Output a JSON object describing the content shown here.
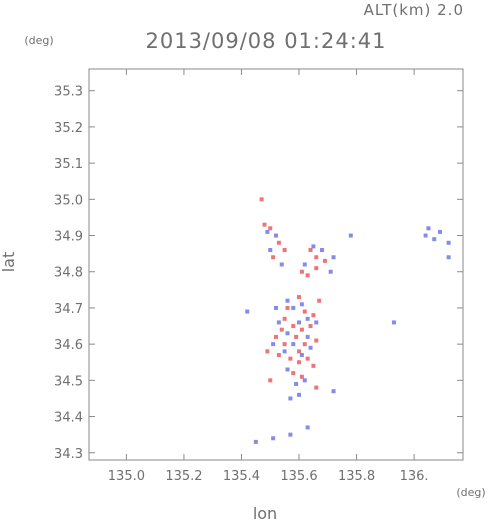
{
  "header": {
    "datetime": "2013/09/08 01:24:41",
    "altitude_label": "ALT(km) 2.0"
  },
  "axes": {
    "y_unit": "(deg)",
    "x_unit": "(deg)",
    "xlabel": "lon",
    "ylabel": "lat"
  },
  "colors": {
    "frame": "#8a8a8a",
    "text": "#6f6f6f",
    "positive": "#e8454b",
    "negative": "#5a66e0",
    "background": "#ffffff"
  },
  "chart_data": {
    "type": "scatter",
    "title": "2013/09/08 01:24:41",
    "xlabel": "lon",
    "ylabel": "lat",
    "xlim": [
      134.87,
      136.17
    ],
    "ylim": [
      34.28,
      35.36
    ],
    "xticks": [
      135.0,
      135.2,
      135.4,
      135.6,
      135.8,
      136.0
    ],
    "xtick_labels": [
      "135.0",
      "135.2",
      "135.4",
      "135.6",
      "135.8",
      "136."
    ],
    "yticks": [
      34.3,
      34.4,
      34.5,
      34.6,
      34.7,
      34.8,
      34.9,
      35.0,
      35.1,
      35.2,
      35.3
    ],
    "ytick_labels": [
      "34.3",
      "34.4",
      "34.5",
      "34.6",
      "34.7",
      "34.8",
      "34.9",
      "35.0",
      "35.1",
      "35.2",
      "35.3"
    ],
    "grid": false,
    "series": [
      {
        "color": "#e8454b",
        "points": [
          [
            135.48,
            34.93
          ],
          [
            135.5,
            34.92
          ],
          [
            135.53,
            34.88
          ],
          [
            135.55,
            34.86
          ],
          [
            135.51,
            34.84
          ],
          [
            135.64,
            34.86
          ],
          [
            135.66,
            34.84
          ],
          [
            135.61,
            34.8
          ],
          [
            135.63,
            34.79
          ],
          [
            135.66,
            34.81
          ],
          [
            135.69,
            34.83
          ],
          [
            135.6,
            34.73
          ],
          [
            135.62,
            34.69
          ],
          [
            135.65,
            34.68
          ],
          [
            135.55,
            34.67
          ],
          [
            135.58,
            34.65
          ],
          [
            135.61,
            34.64
          ],
          [
            135.64,
            34.65
          ],
          [
            135.52,
            34.62
          ],
          [
            135.55,
            34.6
          ],
          [
            135.59,
            34.62
          ],
          [
            135.62,
            34.6
          ],
          [
            135.66,
            34.61
          ],
          [
            135.49,
            34.58
          ],
          [
            135.53,
            34.57
          ],
          [
            135.57,
            34.56
          ],
          [
            135.6,
            34.55
          ],
          [
            135.63,
            34.56
          ],
          [
            135.58,
            34.52
          ],
          [
            135.61,
            34.51
          ],
          [
            135.66,
            34.48
          ],
          [
            135.5,
            34.5
          ],
          [
            135.47,
            35.0
          ],
          [
            135.56,
            34.7
          ],
          [
            135.67,
            34.72
          ],
          [
            135.54,
            34.64
          ],
          [
            135.6,
            34.58
          ],
          [
            135.65,
            34.54
          ]
        ]
      },
      {
        "color": "#5a66e0",
        "points": [
          [
            135.49,
            34.91
          ],
          [
            135.52,
            34.9
          ],
          [
            135.5,
            34.86
          ],
          [
            135.54,
            34.82
          ],
          [
            135.62,
            34.82
          ],
          [
            135.65,
            34.87
          ],
          [
            135.68,
            34.86
          ],
          [
            135.72,
            34.84
          ],
          [
            135.78,
            34.9
          ],
          [
            135.71,
            34.8
          ],
          [
            135.56,
            34.72
          ],
          [
            135.58,
            34.7
          ],
          [
            135.61,
            34.71
          ],
          [
            135.63,
            34.67
          ],
          [
            135.66,
            34.66
          ],
          [
            135.53,
            34.66
          ],
          [
            135.56,
            34.63
          ],
          [
            135.6,
            34.66
          ],
          [
            135.63,
            34.62
          ],
          [
            135.51,
            34.6
          ],
          [
            135.55,
            34.58
          ],
          [
            135.58,
            34.6
          ],
          [
            135.61,
            34.57
          ],
          [
            135.64,
            34.59
          ],
          [
            135.56,
            34.53
          ],
          [
            135.59,
            34.49
          ],
          [
            135.62,
            34.5
          ],
          [
            135.57,
            34.45
          ],
          [
            135.6,
            34.46
          ],
          [
            135.72,
            34.47
          ],
          [
            135.42,
            34.69
          ],
          [
            135.52,
            34.7
          ],
          [
            135.93,
            34.66
          ],
          [
            136.05,
            34.92
          ],
          [
            136.07,
            34.89
          ],
          [
            136.09,
            34.91
          ],
          [
            136.04,
            34.9
          ],
          [
            136.12,
            34.84
          ],
          [
            136.12,
            34.88
          ],
          [
            135.63,
            34.37
          ],
          [
            135.57,
            34.35
          ],
          [
            135.51,
            34.34
          ],
          [
            135.45,
            34.33
          ]
        ]
      }
    ]
  }
}
